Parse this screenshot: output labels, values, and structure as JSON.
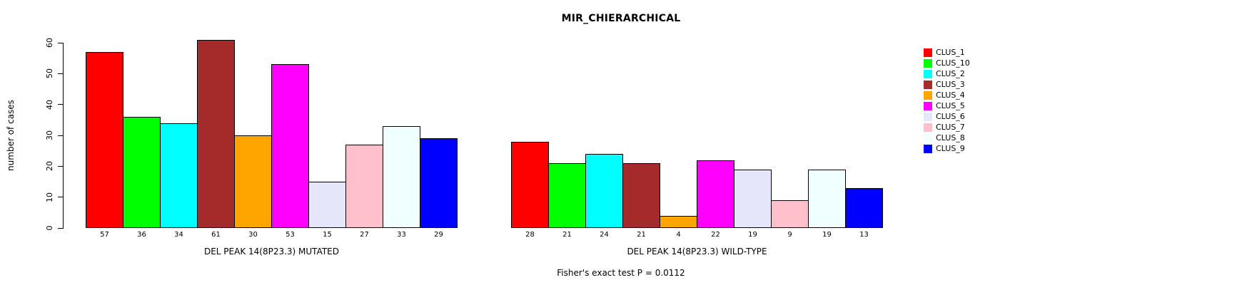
{
  "chart_data": {
    "type": "bar",
    "title": "MIR_CHIERARCHICAL",
    "ylabel": "number of cases",
    "ylim": [
      0,
      60
    ],
    "yticks": [
      0,
      10,
      20,
      30,
      40,
      50,
      60
    ],
    "grid": false,
    "legend_position": "right",
    "series": [
      {
        "name": "CLUS_1",
        "color": "#FF0000"
      },
      {
        "name": "CLUS_10",
        "color": "#00FF00"
      },
      {
        "name": "CLUS_2",
        "color": "#00FFFF"
      },
      {
        "name": "CLUS_3",
        "color": "#A52A2A"
      },
      {
        "name": "CLUS_4",
        "color": "#FFA500"
      },
      {
        "name": "CLUS_5",
        "color": "#FF00FF"
      },
      {
        "name": "CLUS_6",
        "color": "#E6E6FA"
      },
      {
        "name": "CLUS_7",
        "color": "#FFC0CB"
      },
      {
        "name": "CLUS_8",
        "color": "#F0FFFF"
      },
      {
        "name": "CLUS_9",
        "color": "#0000FF"
      }
    ],
    "groups": [
      {
        "label": "DEL PEAK 14(8P23.3) MUTATED",
        "values": [
          57,
          36,
          34,
          61,
          30,
          53,
          15,
          27,
          33,
          29
        ]
      },
      {
        "label": "DEL PEAK 14(8P23.3) WILD-TYPE",
        "values": [
          28,
          21,
          24,
          21,
          4,
          22,
          19,
          9,
          19,
          13
        ]
      }
    ],
    "footnote": "Fisher's exact test P = 0.0112"
  }
}
